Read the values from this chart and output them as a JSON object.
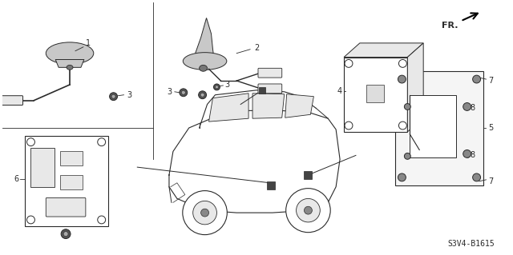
{
  "part_number": "S3V4-B1615",
  "background_color": "#ffffff",
  "line_color": "#2a2a2a",
  "gray_fill": "#c8c8c8",
  "light_gray": "#e8e8e8"
}
